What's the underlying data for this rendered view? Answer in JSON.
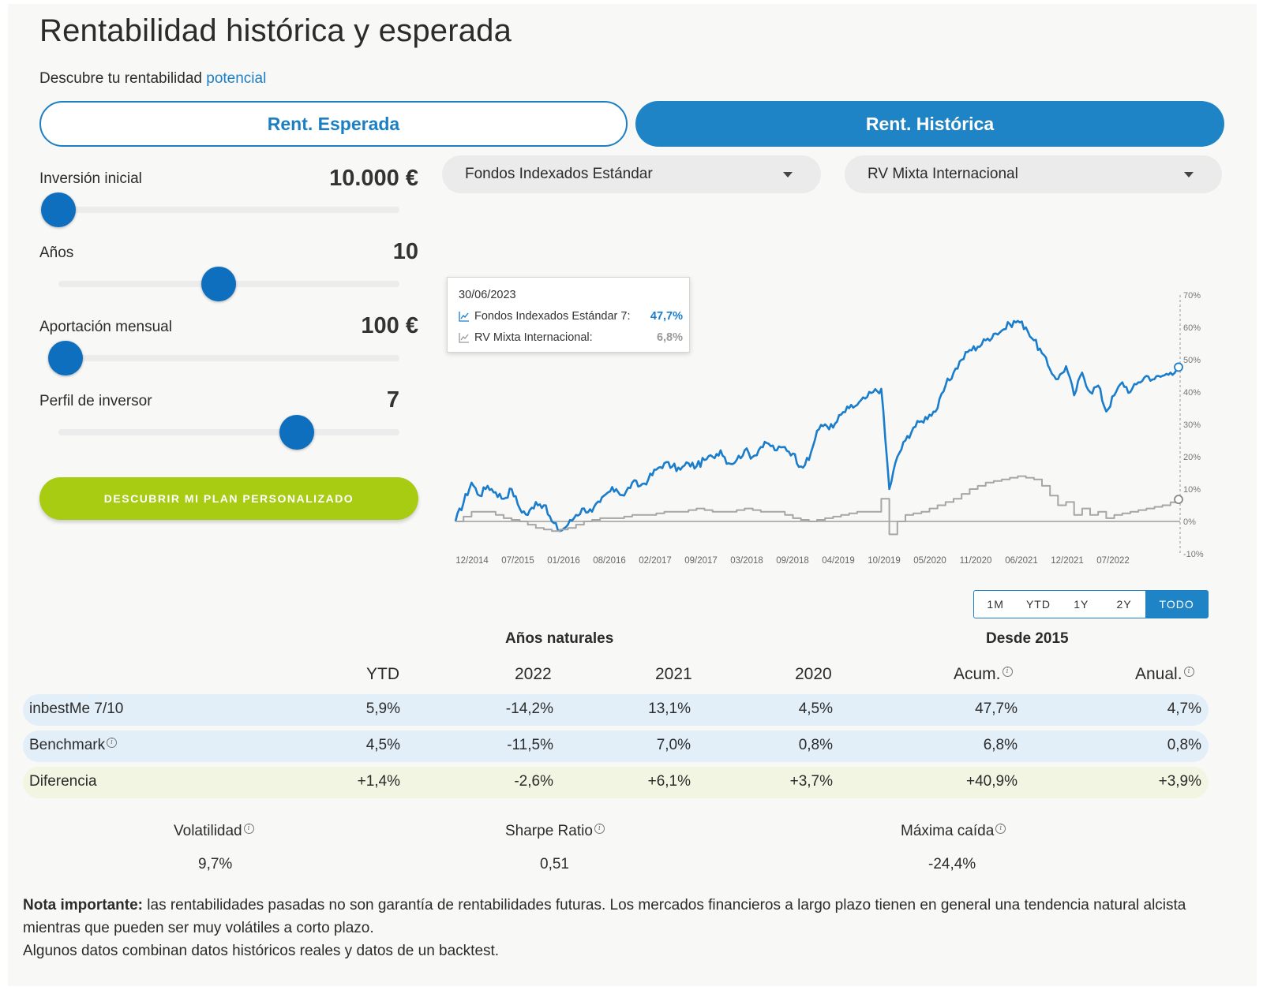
{
  "header": {
    "title": "Rentabilidad histórica y esperada",
    "subtitle_prefix": "Descubre tu rentabilidad",
    "subtitle_link": "potencial"
  },
  "tabs": [
    {
      "label": "Rent. Esperada",
      "active": false
    },
    {
      "label": "Rent. Histórica",
      "active": true
    }
  ],
  "controls": {
    "inversion": {
      "label": "Inversión inicial",
      "value": "10.000 €",
      "level": 0.0
    },
    "anos": {
      "label": "Años",
      "value": "10",
      "level": 0.47
    },
    "aportacion": {
      "label": "Aportación mensual",
      "value": "100 €",
      "level": 0.02
    },
    "perfil": {
      "label": "Perfil de inversor",
      "value": "7",
      "level": 0.7
    },
    "cta": "DESCUBRIR MI PLAN PERSONALIZADO"
  },
  "selects": {
    "fund": "Fondos Indexados Estándar",
    "benchmark": "RV Mixta Internacional"
  },
  "tooltip": {
    "date": "30/06/2023",
    "rows": [
      {
        "name": "Fondos Indexados Estándar 7:",
        "value": "47,7%"
      },
      {
        "name": "RV Mixta Internacional:",
        "value": "6,8%"
      }
    ]
  },
  "range_buttons": [
    {
      "label": "1M",
      "active": false
    },
    {
      "label": "YTD",
      "active": false
    },
    {
      "label": "1Y",
      "active": false
    },
    {
      "label": "2Y",
      "active": false
    },
    {
      "label": "TODO",
      "active": true
    }
  ],
  "chart_data": {
    "type": "line",
    "x": [
      "12/2014",
      "07/2015",
      "01/2016",
      "08/2016",
      "02/2017",
      "09/2017",
      "03/2018",
      "09/2018",
      "04/2019",
      "10/2019",
      "05/2020",
      "11/2020",
      "06/2021",
      "12/2021",
      "07/2022",
      "06/2023"
    ],
    "x_tick_labels": [
      "12/2014",
      "07/2015",
      "01/2016",
      "08/2016",
      "02/2017",
      "09/2017",
      "03/2018",
      "09/2018",
      "04/2019",
      "10/2019",
      "05/2020",
      "11/2020",
      "06/2021",
      "12/2021",
      "07/2022"
    ],
    "y_tick_labels": [
      "70%",
      "60%",
      "50%",
      "40%",
      "30%",
      "20%",
      "10%",
      "0%",
      "-10%"
    ],
    "ylim": [
      -10,
      70
    ],
    "grid": false,
    "series": [
      {
        "name": "Fondos Indexados Estándar 7",
        "color": "#1a7dcb",
        "points": [
          [
            0,
            0
          ],
          [
            2,
            12
          ],
          [
            3,
            8
          ],
          [
            4,
            11
          ],
          [
            5,
            9
          ],
          [
            6,
            7
          ],
          [
            7,
            10
          ],
          [
            8,
            4
          ],
          [
            9,
            2
          ],
          [
            10,
            6
          ],
          [
            11,
            5
          ],
          [
            12,
            0
          ],
          [
            13,
            -3
          ],
          [
            14,
            -1
          ],
          [
            15,
            2
          ],
          [
            16,
            4
          ],
          [
            17,
            3
          ],
          [
            18,
            6
          ],
          [
            19,
            9
          ],
          [
            20,
            10
          ],
          [
            21,
            8
          ],
          [
            22,
            12
          ],
          [
            23,
            11
          ],
          [
            24,
            13
          ],
          [
            25,
            16
          ],
          [
            26,
            18
          ],
          [
            27,
            17
          ],
          [
            28,
            16
          ],
          [
            29,
            18
          ],
          [
            30,
            17
          ],
          [
            31,
            19
          ],
          [
            32,
            20
          ],
          [
            33,
            22
          ],
          [
            34,
            18
          ],
          [
            35,
            19
          ],
          [
            36,
            22
          ],
          [
            37,
            20
          ],
          [
            38,
            23
          ],
          [
            39,
            24
          ],
          [
            40,
            22
          ],
          [
            41,
            23
          ],
          [
            42,
            21
          ],
          [
            43,
            17
          ],
          [
            44,
            19
          ],
          [
            45,
            28
          ],
          [
            46,
            30
          ],
          [
            47,
            29
          ],
          [
            48,
            33
          ],
          [
            49,
            35
          ],
          [
            50,
            36
          ],
          [
            51,
            38
          ],
          [
            52,
            40
          ],
          [
            53,
            41
          ],
          [
            54,
            10
          ],
          [
            55,
            20
          ],
          [
            56,
            25
          ],
          [
            57,
            29
          ],
          [
            58,
            31
          ],
          [
            59,
            33
          ],
          [
            60,
            35
          ],
          [
            61,
            42
          ],
          [
            62,
            46
          ],
          [
            63,
            50
          ],
          [
            64,
            53
          ],
          [
            65,
            54
          ],
          [
            66,
            56
          ],
          [
            67,
            58
          ],
          [
            68,
            59
          ],
          [
            69,
            61
          ],
          [
            70,
            62
          ],
          [
            71,
            60
          ],
          [
            72,
            56
          ],
          [
            73,
            52
          ],
          [
            74,
            47
          ],
          [
            75,
            44
          ],
          [
            76,
            48
          ],
          [
            77,
            39
          ],
          [
            78,
            46
          ],
          [
            79,
            40
          ],
          [
            80,
            42
          ],
          [
            81,
            34
          ],
          [
            82,
            39
          ],
          [
            83,
            43
          ],
          [
            84,
            40
          ],
          [
            85,
            43
          ],
          [
            86,
            45
          ],
          [
            87,
            44
          ],
          [
            88,
            45
          ],
          [
            89,
            46
          ],
          [
            90,
            47.7
          ]
        ]
      },
      {
        "name": "RV Mixta Internacional",
        "color": "#a6a6a6",
        "points": [
          [
            0,
            0
          ],
          [
            2,
            3
          ],
          [
            4,
            3
          ],
          [
            6,
            1
          ],
          [
            8,
            0
          ],
          [
            10,
            -2
          ],
          [
            12,
            -3
          ],
          [
            14,
            -2
          ],
          [
            16,
            0
          ],
          [
            18,
            1
          ],
          [
            20,
            1
          ],
          [
            22,
            2
          ],
          [
            24,
            2
          ],
          [
            26,
            3
          ],
          [
            28,
            3
          ],
          [
            30,
            4
          ],
          [
            32,
            3
          ],
          [
            34,
            3
          ],
          [
            36,
            4
          ],
          [
            38,
            3
          ],
          [
            40,
            3
          ],
          [
            42,
            1
          ],
          [
            44,
            0
          ],
          [
            46,
            1
          ],
          [
            48,
            2
          ],
          [
            50,
            3
          ],
          [
            52,
            3
          ],
          [
            53,
            7
          ],
          [
            54,
            -4
          ],
          [
            55,
            0
          ],
          [
            56,
            2
          ],
          [
            58,
            3
          ],
          [
            60,
            5
          ],
          [
            62,
            7
          ],
          [
            64,
            10
          ],
          [
            66,
            12
          ],
          [
            68,
            13
          ],
          [
            70,
            14
          ],
          [
            72,
            13
          ],
          [
            73,
            11
          ],
          [
            74,
            8
          ],
          [
            75,
            5
          ],
          [
            76,
            6
          ],
          [
            77,
            2
          ],
          [
            78,
            4
          ],
          [
            79,
            2
          ],
          [
            80,
            3
          ],
          [
            81,
            1
          ],
          [
            82,
            2
          ],
          [
            84,
            3
          ],
          [
            86,
            4
          ],
          [
            88,
            5
          ],
          [
            90,
            6.8
          ]
        ]
      }
    ]
  },
  "table": {
    "group_heads": [
      "Años naturales",
      "Desde 2015"
    ],
    "headers": [
      "YTD",
      "2022",
      "2021",
      "2020",
      "Acum.",
      "Anual."
    ],
    "rows": [
      {
        "name": "inbestMe 7/10",
        "values": [
          "5,9%",
          "-14,2%",
          "13,1%",
          "4,5%",
          "47,7%",
          "4,7%"
        ]
      },
      {
        "name": "Benchmark",
        "values": [
          "4,5%",
          "-11,5%",
          "7,0%",
          "0,8%",
          "6,8%",
          "0,8%"
        ]
      },
      {
        "name": "Diferencia",
        "values": [
          "+1,4%",
          "-2,6%",
          "+6,1%",
          "+3,7%",
          "+40,9%",
          "+3,9%"
        ]
      }
    ]
  },
  "stats": [
    {
      "label": "Volatilidad",
      "value": "9,7%"
    },
    {
      "label": "Sharpe Ratio",
      "value": "0,51"
    },
    {
      "label": "Máxima caída",
      "value": "-24,4%"
    }
  ],
  "note": {
    "bold": "Nota importante:",
    "text": " las rentabilidades pasadas no son garantía de rentabilidades futuras. Los mercados financieros a largo plazo tienen en general una tendencia natural alcista mientras que pueden ser muy volátiles a corto plazo.",
    "line2": "Algunos datos combinan datos históricos reales y datos de un backtest."
  },
  "colors": {
    "accent": "#1f84c6",
    "cta": "#a7cc12",
    "row_blue": "#e3eff8",
    "row_green": "#f1f5e2"
  }
}
